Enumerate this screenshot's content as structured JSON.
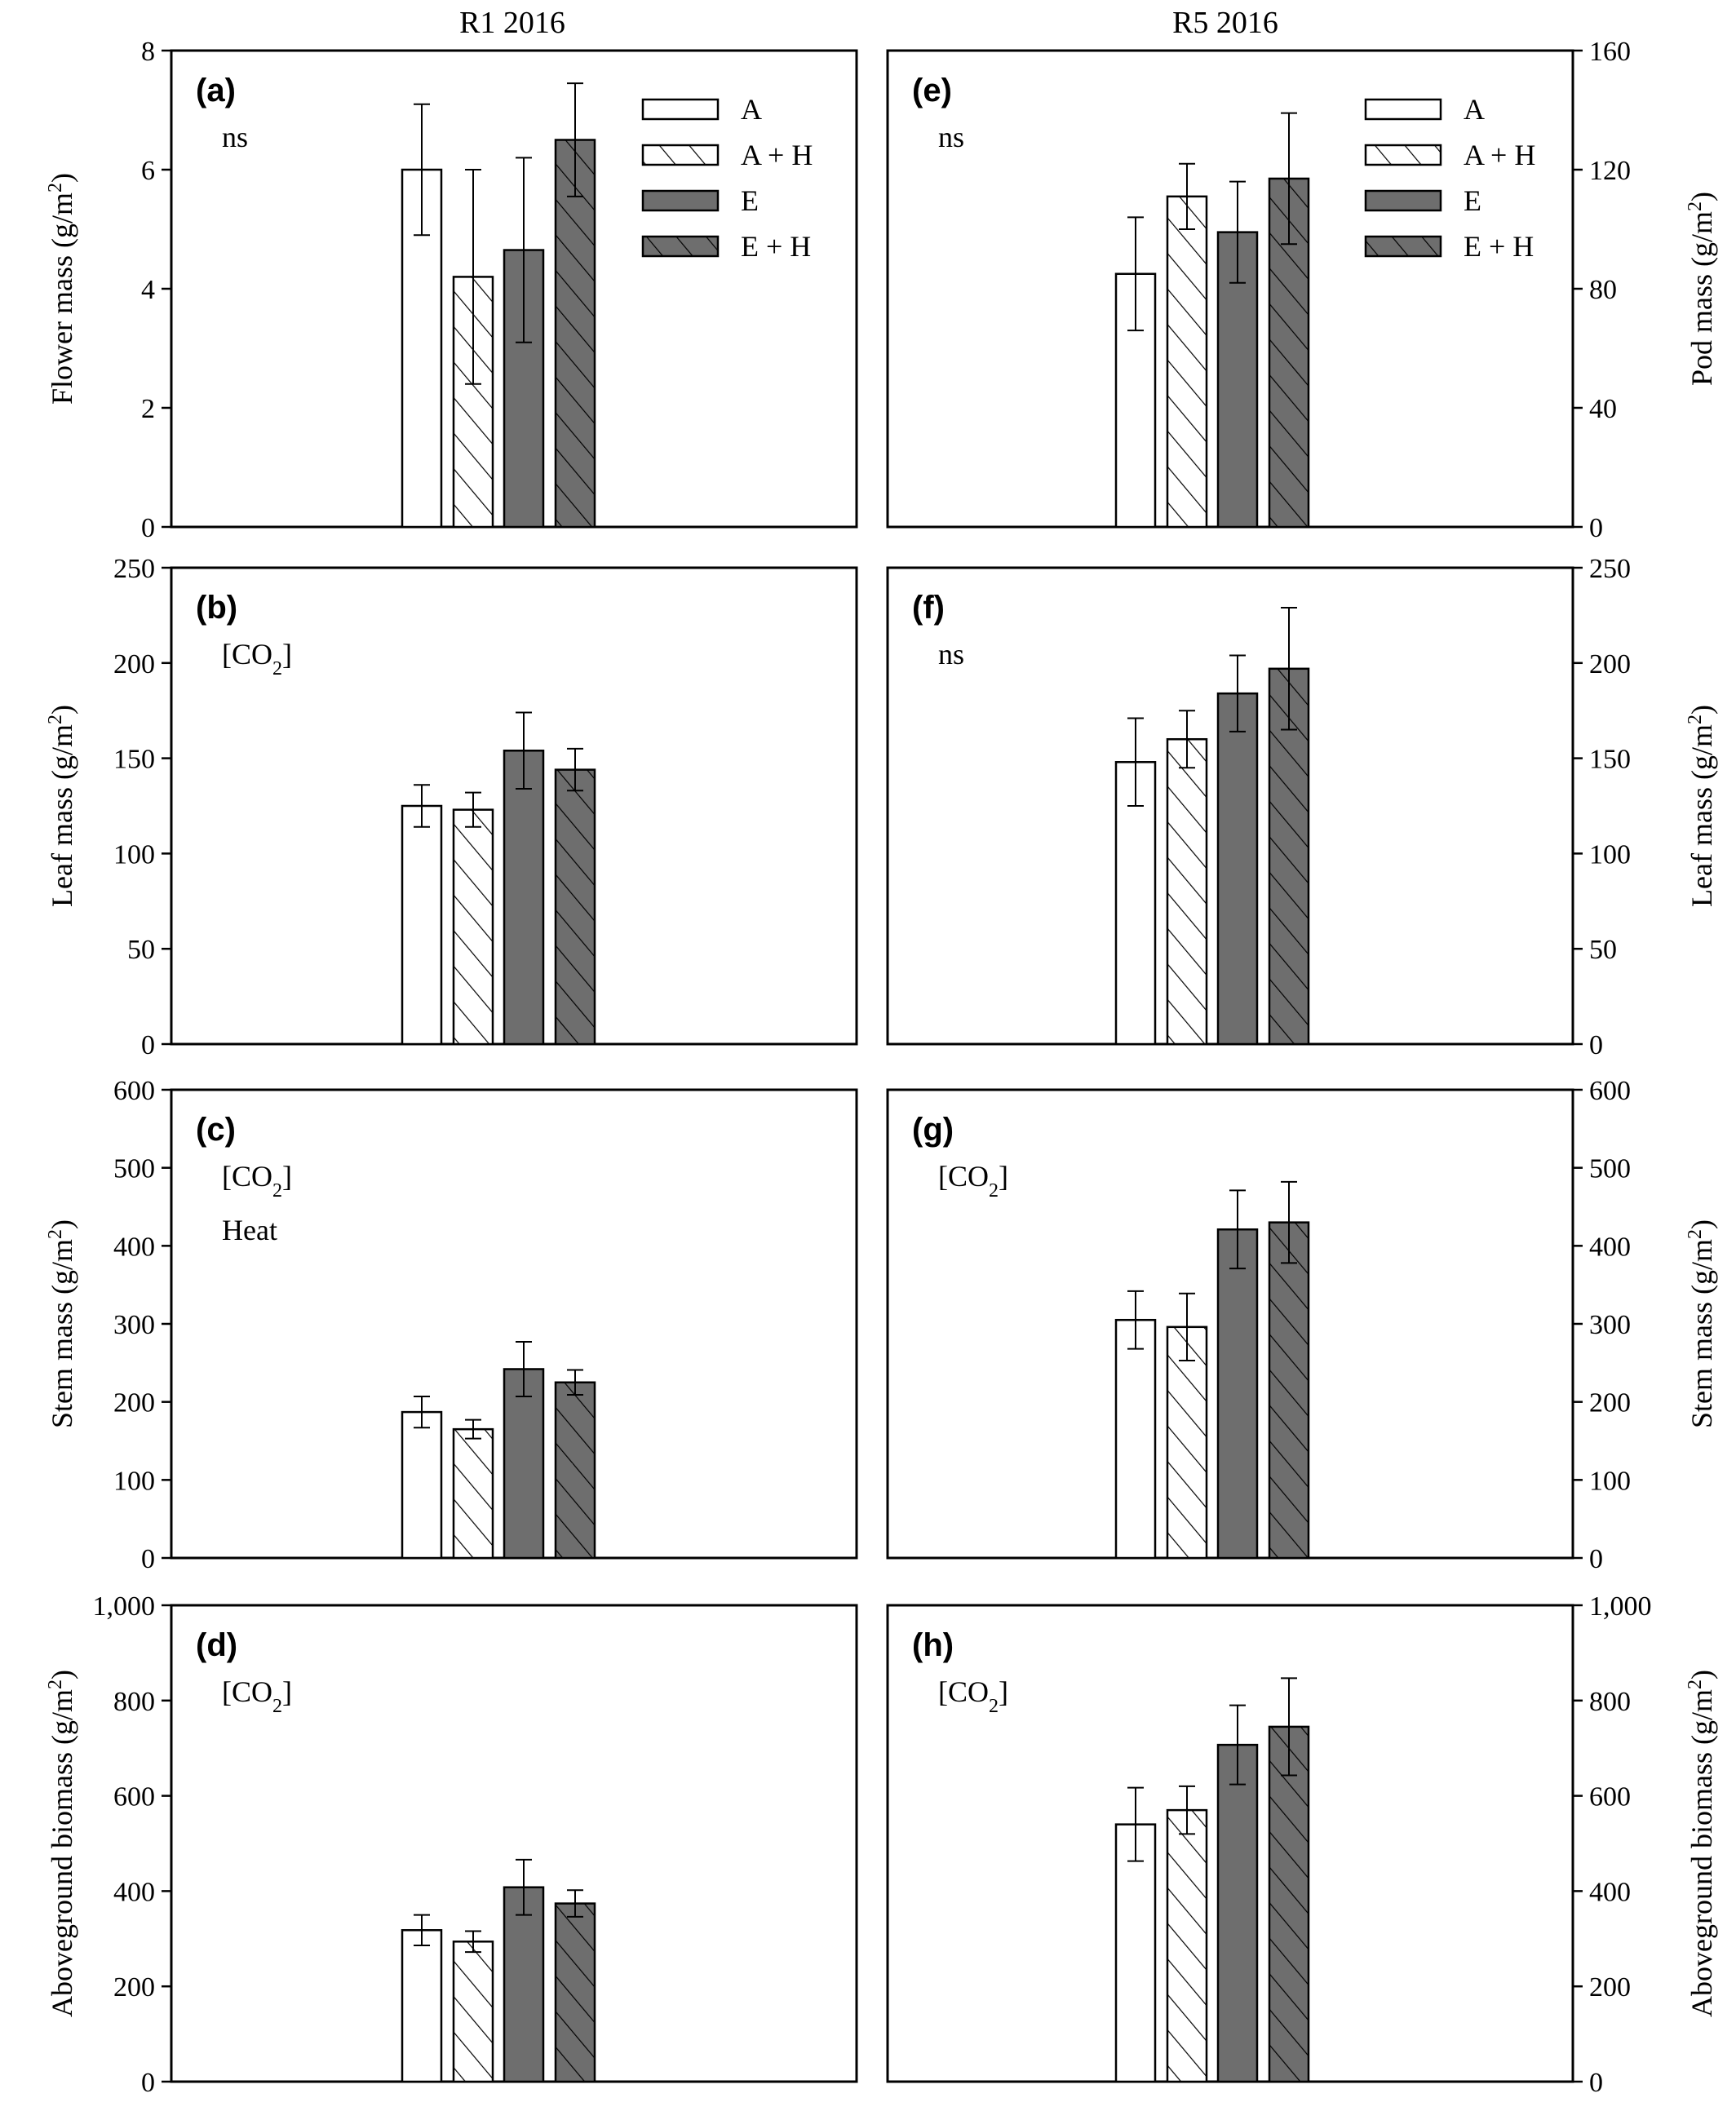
{
  "column_titles": [
    "R1 2016",
    "R5 2016"
  ],
  "legend": [
    {
      "label": "A",
      "fill": "#ffffff",
      "hatch": false
    },
    {
      "label": "A + H",
      "fill": "#ffffff",
      "hatch": true
    },
    {
      "label": "E",
      "fill": "#6e6e6e",
      "hatch": false
    },
    {
      "label": "E + H",
      "fill": "#6e6e6e",
      "hatch": true
    }
  ],
  "chart_data": [
    {
      "id": "a",
      "type": "bar",
      "panel_label": "(a)",
      "column": 0,
      "row": 0,
      "annotations": [
        "ns"
      ],
      "ylabel": "Flower mass (g/m²)",
      "ylim": [
        0,
        8
      ],
      "yticks": [
        "0",
        "2",
        "4",
        "6",
        "8"
      ],
      "ytick_values": [
        0,
        2,
        4,
        6,
        8
      ],
      "categories": [
        "A",
        "A + H",
        "E",
        "E + H"
      ],
      "values": [
        6.0,
        4.2,
        4.65,
        6.5
      ],
      "errors": [
        1.1,
        1.8,
        1.55,
        0.95
      ],
      "legend": true
    },
    {
      "id": "b",
      "type": "bar",
      "panel_label": "(b)",
      "column": 0,
      "row": 1,
      "annotations": [
        "[CO₂]"
      ],
      "ylabel": "Leaf mass (g/m²)",
      "ylim": [
        0,
        250
      ],
      "yticks": [
        "0",
        "50",
        "100",
        "150",
        "200",
        "250"
      ],
      "ytick_values": [
        0,
        50,
        100,
        150,
        200,
        250
      ],
      "categories": [
        "A",
        "A + H",
        "E",
        "E + H"
      ],
      "values": [
        125,
        123,
        154,
        144
      ],
      "errors": [
        11,
        9,
        20,
        11
      ],
      "legend": false
    },
    {
      "id": "c",
      "type": "bar",
      "panel_label": "(c)",
      "column": 0,
      "row": 2,
      "annotations": [
        "[CO₂]",
        "Heat"
      ],
      "ylabel": "Stem mass (g/m²)",
      "ylim": [
        0,
        600
      ],
      "yticks": [
        "0",
        "100",
        "200",
        "300",
        "400",
        "500",
        "600"
      ],
      "ytick_values": [
        0,
        100,
        200,
        300,
        400,
        500,
        600
      ],
      "categories": [
        "A",
        "A + H",
        "E",
        "E + H"
      ],
      "values": [
        187,
        165,
        242,
        225
      ],
      "errors": [
        20,
        12,
        35,
        16
      ],
      "legend": false
    },
    {
      "id": "d",
      "type": "bar",
      "panel_label": "(d)",
      "column": 0,
      "row": 3,
      "annotations": [
        "[CO₂]"
      ],
      "ylabel": "Aboveground biomass (g/m²)",
      "ylim": [
        0,
        1000
      ],
      "yticks": [
        "0",
        "200",
        "400",
        "600",
        "800",
        "1,000"
      ],
      "ytick_values": [
        0,
        200,
        400,
        600,
        800,
        1000
      ],
      "categories": [
        "A",
        "A + H",
        "E",
        "E + H"
      ],
      "values": [
        318,
        294,
        408,
        374
      ],
      "errors": [
        32,
        22,
        58,
        28
      ],
      "legend": false
    },
    {
      "id": "e",
      "type": "bar",
      "panel_label": "(e)",
      "column": 1,
      "row": 0,
      "annotations": [
        "ns"
      ],
      "ylabel": "Pod mass (g/m²)",
      "ylim": [
        0,
        160
      ],
      "yticks": [
        "0",
        "40",
        "80",
        "120",
        "160"
      ],
      "ytick_values": [
        0,
        40,
        80,
        120,
        160
      ],
      "categories": [
        "A",
        "A + H",
        "E",
        "E + H"
      ],
      "values": [
        85,
        111,
        99,
        117
      ],
      "errors": [
        19,
        11,
        17,
        22
      ],
      "legend": true
    },
    {
      "id": "f",
      "type": "bar",
      "panel_label": "(f)",
      "column": 1,
      "row": 1,
      "annotations": [
        "ns"
      ],
      "ylabel": "Leaf mass (g/m²)",
      "ylim": [
        0,
        250
      ],
      "yticks": [
        "0",
        "50",
        "100",
        "150",
        "200",
        "250"
      ],
      "ytick_values": [
        0,
        50,
        100,
        150,
        200,
        250
      ],
      "categories": [
        "A",
        "A + H",
        "E",
        "E + H"
      ],
      "values": [
        148,
        160,
        184,
        197
      ],
      "errors": [
        23,
        15,
        20,
        32
      ],
      "legend": false
    },
    {
      "id": "g",
      "type": "bar",
      "panel_label": "(g)",
      "column": 1,
      "row": 2,
      "annotations": [
        "[CO₂]"
      ],
      "ylabel": "Stem mass (g/m²)",
      "ylim": [
        0,
        600
      ],
      "yticks": [
        "0",
        "100",
        "200",
        "300",
        "400",
        "500",
        "600"
      ],
      "ytick_values": [
        0,
        100,
        200,
        300,
        400,
        500,
        600
      ],
      "categories": [
        "A",
        "A + H",
        "E",
        "E + H"
      ],
      "values": [
        305,
        296,
        421,
        430
      ],
      "errors": [
        37,
        43,
        50,
        52
      ],
      "legend": false
    },
    {
      "id": "h",
      "type": "bar",
      "panel_label": "(h)",
      "column": 1,
      "row": 3,
      "annotations": [
        "[CO₂]"
      ],
      "ylabel": "Aboveground biomass (g/m²)",
      "ylim": [
        0,
        1000
      ],
      "yticks": [
        "0",
        "200",
        "400",
        "600",
        "800",
        "1,000"
      ],
      "ytick_values": [
        0,
        200,
        400,
        600,
        800,
        1000
      ],
      "categories": [
        "A",
        "A + H",
        "E",
        "E + H"
      ],
      "values": [
        540,
        570,
        707,
        745
      ],
      "errors": [
        77,
        50,
        83,
        102
      ],
      "legend": false
    }
  ]
}
